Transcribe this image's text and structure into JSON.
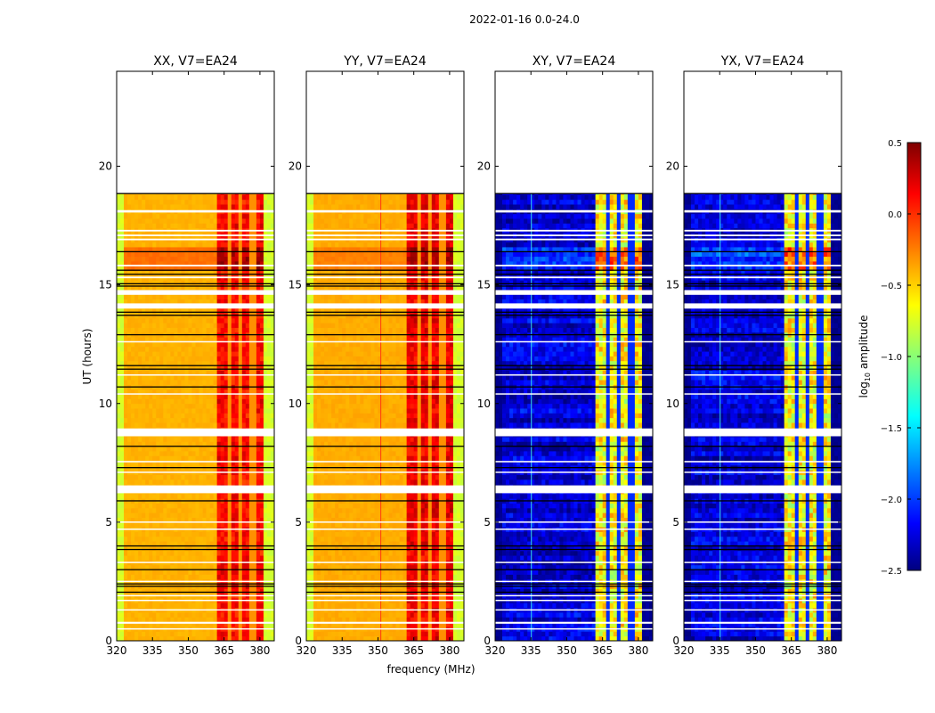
{
  "chart_data": {
    "type": "heatmap",
    "title": "2022-01-16 0.0-24.0",
    "xlabel": "frequency (MHz)",
    "ylabel": "UT (hours)",
    "xlim": [
      320,
      386
    ],
    "ylim": [
      0,
      24
    ],
    "xticks": [
      320,
      335,
      350,
      365,
      380
    ],
    "yticks": [
      0,
      5,
      10,
      15,
      20
    ],
    "data_time_range": [
      0,
      18.85
    ],
    "panels": [
      {
        "title": "XX, V7=EA24",
        "kind": "parallel",
        "base": -0.4,
        "edge": -0.75,
        "band": 0.05,
        "band_noise": 0.25,
        "bright_window_base": -0.2,
        "bright_window_band": 0.35,
        "line_freq": null
      },
      {
        "title": "YY, V7=EA24",
        "kind": "parallel",
        "base": -0.38,
        "edge": -0.75,
        "band": 0.12,
        "band_noise": 0.25,
        "bright_window_base": -0.25,
        "bright_window_band": 0.35,
        "line_freq": 351
      },
      {
        "title": "XY, V7=EA24",
        "kind": "cross",
        "base": -2.25,
        "edge": -2.45,
        "band": -0.75,
        "band_noise": 0.6,
        "bright_window_base": -1.95,
        "bright_window_band": -0.3,
        "line_freq": 335
      },
      {
        "title": "YX, V7=EA24",
        "kind": "cross",
        "base": -2.25,
        "edge": -2.45,
        "band": -0.75,
        "band_noise": 0.6,
        "bright_window_base": -1.95,
        "bright_window_band": -0.3,
        "line_freq": 335
      }
    ],
    "band_range_mhz": [
      362,
      381.5
    ],
    "band_gaps_mhz": [
      [
        366.5,
        367.5
      ],
      [
        371.5,
        372.5
      ],
      [
        376.5,
        377.5
      ]
    ],
    "bright_window_hours": [
      15.5,
      16.4
    ],
    "flagged_hours": [
      [
        18.05,
        18.15
      ],
      [
        17.25,
        17.32
      ],
      [
        17.05,
        17.12
      ],
      [
        16.88,
        16.95
      ],
      [
        15.78,
        15.85
      ],
      [
        15.28,
        15.35
      ],
      [
        14.58,
        14.78
      ],
      [
        14.0,
        14.22
      ],
      [
        12.58,
        12.63
      ],
      [
        11.18,
        11.23
      ],
      [
        10.38,
        10.43
      ],
      [
        8.62,
        8.95
      ],
      [
        7.52,
        7.58
      ],
      [
        7.08,
        7.13
      ],
      [
        6.22,
        6.55
      ],
      [
        4.98,
        5.03
      ],
      [
        4.68,
        4.73
      ],
      [
        3.28,
        3.33
      ],
      [
        2.48,
        2.53
      ],
      [
        1.88,
        1.93
      ],
      [
        1.68,
        1.73
      ],
      [
        1.28,
        1.33
      ],
      [
        0.72,
        0.8
      ],
      [
        0.48,
        0.53
      ]
    ],
    "black_line_hours": [
      18.85,
      16.4,
      15.62,
      15.45,
      15.05,
      14.95,
      13.85,
      13.72,
      12.9,
      11.6,
      11.45,
      10.7,
      8.2,
      7.3,
      5.9,
      4.0,
      3.85,
      3.0,
      2.4,
      2.3,
      2.05
    ],
    "colorbar": {
      "label_prefix": "log",
      "label_sub": "10",
      "label_suffix": " amplitude",
      "range": [
        -2.5,
        0.5
      ],
      "ticks": [
        "0.5",
        "0.0",
        "−0.5",
        "−1.0",
        "−1.5",
        "−2.0",
        "−2.5"
      ],
      "tick_values": [
        0.5,
        0.0,
        -0.5,
        -1.0,
        -1.5,
        -2.0,
        -2.5
      ],
      "colormap": "jet"
    }
  }
}
